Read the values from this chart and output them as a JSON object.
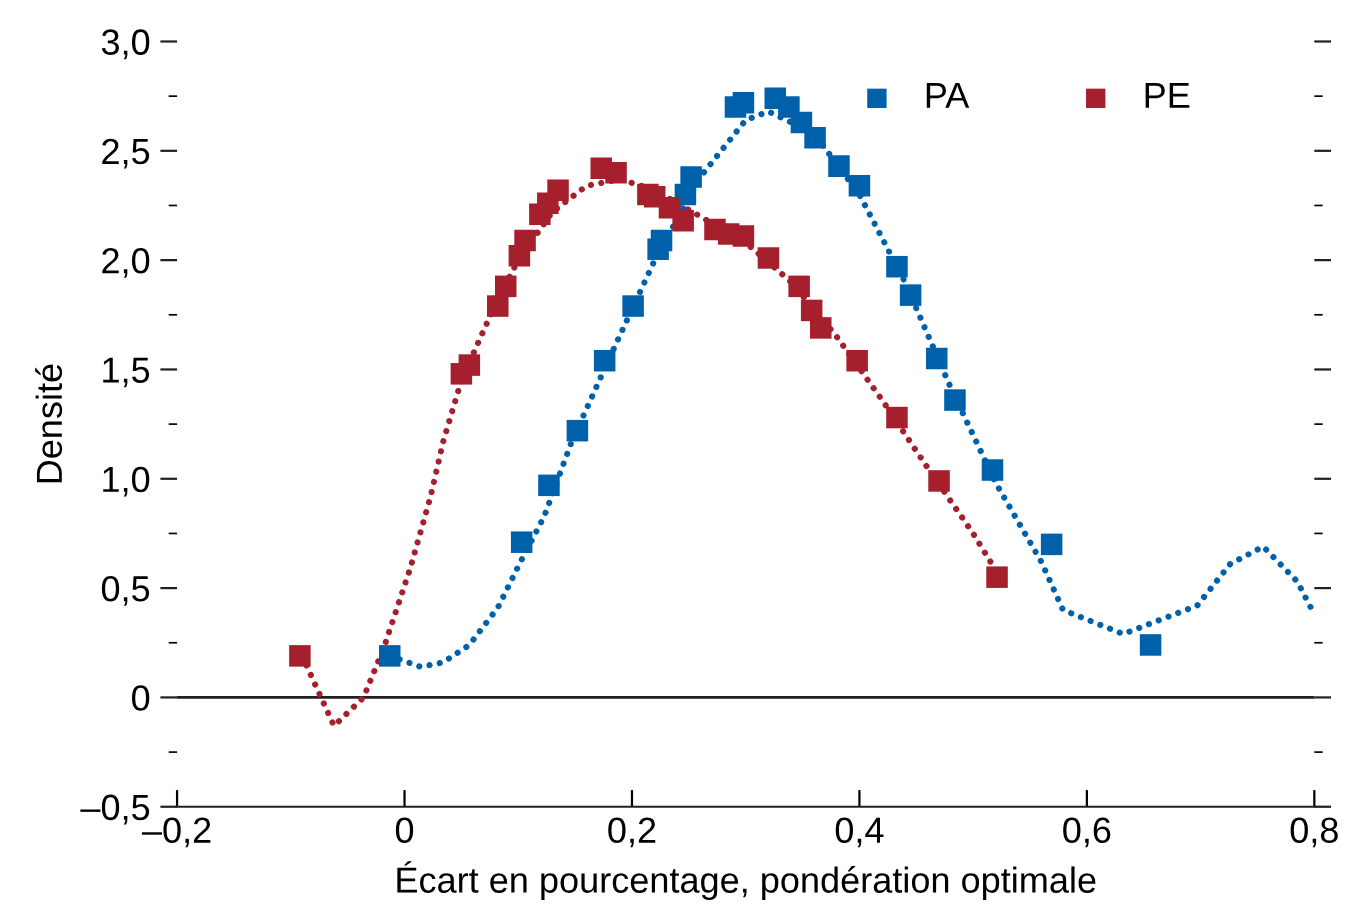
{
  "chart_data": {
    "type": "scatter",
    "xlabel": "Écart en pourcentage, pondération optimale",
    "ylabel": "Densité",
    "series": [
      {
        "name": "PA",
        "color": "#0061ab",
        "marker": "square",
        "x": [
          -0.013,
          0.103,
          0.127,
          0.152,
          0.176,
          0.201,
          0.223,
          0.226,
          0.247,
          0.252,
          0.291,
          0.298,
          0.326,
          0.338,
          0.349,
          0.361,
          0.382,
          0.4,
          0.433,
          0.445,
          0.468,
          0.484,
          0.517,
          0.569,
          0.656
        ],
        "values": [
          0.19,
          0.71,
          0.97,
          1.22,
          1.54,
          1.79,
          2.05,
          2.09,
          2.3,
          2.38,
          2.7,
          2.72,
          2.74,
          2.7,
          2.63,
          2.56,
          2.43,
          2.34,
          1.97,
          1.84,
          1.55,
          1.36,
          1.04,
          0.7,
          0.24
        ]
      },
      {
        "name": "PE",
        "color": "#a51f2d",
        "marker": "square",
        "x": [
          -0.092,
          0.05,
          0.057,
          0.082,
          0.089,
          0.101,
          0.106,
          0.119,
          0.126,
          0.135,
          0.173,
          0.186,
          0.214,
          0.22,
          0.233,
          0.245,
          0.273,
          0.285,
          0.298,
          0.32,
          0.347,
          0.358,
          0.366,
          0.398,
          0.433,
          0.47,
          0.521
        ],
        "values": [
          0.19,
          1.48,
          1.52,
          1.79,
          1.88,
          2.02,
          2.09,
          2.21,
          2.26,
          2.32,
          2.42,
          2.4,
          2.3,
          2.29,
          2.24,
          2.18,
          2.14,
          2.12,
          2.11,
          2.01,
          1.88,
          1.77,
          1.69,
          1.54,
          1.28,
          0.99,
          0.55
        ]
      },
      {
        "type": "line",
        "color": "#0061ab",
        "line_style": "dotted",
        "x": [
          -0.013,
          0.014,
          0.034,
          0.057,
          0.082,
          0.102,
          0.123,
          0.147,
          0.18,
          0.22,
          0.26,
          0.3,
          0.32,
          0.36,
          0.4,
          0.44,
          0.48,
          0.52,
          0.56,
          0.579,
          0.632,
          0.697,
          0.726,
          0.755,
          0.785,
          0.8
        ],
        "values": [
          0.19,
          0.14,
          0.16,
          0.24,
          0.41,
          0.62,
          0.83,
          1.17,
          1.55,
          2.0,
          2.38,
          2.64,
          2.68,
          2.58,
          2.3,
          1.9,
          1.42,
          0.98,
          0.62,
          0.4,
          0.29,
          0.42,
          0.61,
          0.69,
          0.53,
          0.38
        ]
      },
      {
        "type": "line",
        "color": "#a51f2d",
        "line_style": "dotted",
        "x": [
          -0.09,
          -0.062,
          -0.036,
          -0.018,
          0.005,
          0.023,
          0.034,
          0.05,
          0.08,
          0.1,
          0.13,
          0.16,
          0.19,
          0.22,
          0.26,
          0.3,
          0.34,
          0.38,
          0.42,
          0.46,
          0.5,
          0.52
        ],
        "values": [
          0.19,
          -0.13,
          0.0,
          0.23,
          0.59,
          0.92,
          1.17,
          1.45,
          1.8,
          2.0,
          2.22,
          2.34,
          2.37,
          2.32,
          2.2,
          2.08,
          1.9,
          1.65,
          1.36,
          1.05,
          0.75,
          0.58
        ]
      }
    ],
    "xlim": [
      -0.2,
      0.8
    ],
    "xticks": [
      {
        "value": -0.2,
        "label": "–0,2"
      },
      0,
      {
        "value": 0.2,
        "label": "0,2"
      },
      {
        "value": 0.4,
        "label": "0,4"
      },
      {
        "value": 0.6,
        "label": "0,6"
      },
      {
        "value": 0.8,
        "label": "0,8"
      }
    ],
    "ylim": [
      -0.5,
      3.0
    ],
    "yticks": [
      {
        "value": -0.5,
        "label": "–0,5"
      },
      {
        "value": -0.25,
        "label": null
      },
      0,
      {
        "value": 0.25,
        "label": null
      },
      {
        "value": 0.5,
        "label": "0,5"
      },
      {
        "value": 0.75,
        "label": null
      },
      {
        "value": 1.0,
        "label": "1,0"
      },
      {
        "value": 1.25,
        "label": null
      },
      {
        "value": 1.5,
        "label": "1,5"
      },
      {
        "value": 1.75,
        "label": null
      },
      {
        "value": 2.0,
        "label": "2,0"
      },
      {
        "value": 2.25,
        "label": null
      },
      {
        "value": 2.5,
        "label": "2,5"
      },
      {
        "value": 2.75,
        "label": null
      },
      {
        "value": 3.0,
        "label": "3,0"
      }
    ],
    "ref_lines": [
      {
        "axis": "y",
        "value": 0,
        "color": "#231f20"
      }
    ],
    "grid": false,
    "legend": "top right"
  }
}
